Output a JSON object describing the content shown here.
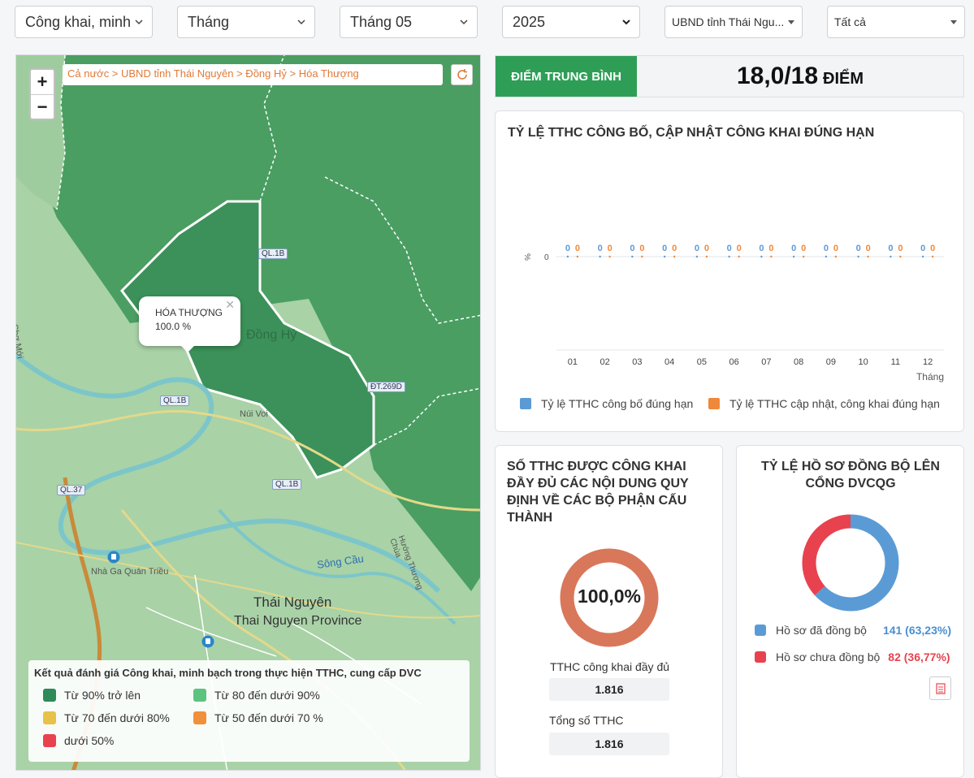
{
  "filters": {
    "type": "Công khai, minh",
    "period": "Tháng",
    "month": "Tháng 05",
    "year": "2025",
    "unit": "UBND tỉnh Thái Ngu...",
    "scope": "Tất cả"
  },
  "map": {
    "breadcrumb": "Cả nước > UBND tỉnh Thái Nguyên > Đồng Hỷ > Hóa Thượng",
    "popup": {
      "name": "HÓA THƯỢNG",
      "value": "100.0 %"
    },
    "labels": {
      "city": "Thái Nguyên",
      "province": "Thai Nguyen Province",
      "district": "Đồng Hỷ",
      "station": "Nhà Ga Quán Triều",
      "river": "Sông Cầu",
      "road_huong": "Hướng Thượng Chùa",
      "nui_voi": "Núi Voi",
      "tho_moi": "Chợ Mới"
    },
    "roads": [
      "QL.1B",
      "QL.1B",
      "QL.1B",
      "QL.37",
      "ĐT.269D"
    ],
    "legend": {
      "title": "Kết quả đánh giá Công khai, minh bạch trong thực hiện TTHC, cung cấp DVC",
      "items": [
        {
          "label": "Từ 90% trở lên",
          "color": "#2e8b57"
        },
        {
          "label": "Từ 80 đến dưới 90%",
          "color": "#5cc47f"
        },
        {
          "label": "Từ 70 đến dưới 80%",
          "color": "#e8c14a"
        },
        {
          "label": "Từ 50 đến dưới 70 %",
          "color": "#f0903a"
        },
        {
          "label": "dưới 50%",
          "color": "#e8424e"
        }
      ]
    }
  },
  "average": {
    "label": "ĐIỂM TRUNG BÌNH",
    "value": "18,0/18",
    "unit": "ĐIỂM"
  },
  "chart_data": [
    {
      "type": "line",
      "title": "TỶ LỆ TTHC CÔNG BỐ, CẬP NHẬT CÔNG KHAI ĐÚNG HẠN",
      "xlabel": "Tháng",
      "ylabel": "%",
      "categories": [
        "01",
        "02",
        "03",
        "04",
        "05",
        "06",
        "07",
        "08",
        "09",
        "10",
        "11",
        "12"
      ],
      "y_ticks": [
        "0"
      ],
      "series": [
        {
          "name": "Tỷ lệ TTHC công bố đúng hạn",
          "color": "#5b9bd5",
          "values": [
            0,
            0,
            0,
            0,
            0,
            0,
            0,
            0,
            0,
            0,
            0,
            0
          ]
        },
        {
          "name": "Tỷ lệ TTHC cập nhật, công khai đúng hạn",
          "color": "#f0883a",
          "values": [
            0,
            0,
            0,
            0,
            0,
            0,
            0,
            0,
            0,
            0,
            0,
            0
          ]
        }
      ],
      "legend": "bottom"
    },
    {
      "type": "pie",
      "title": "SỐ TTHC ĐƯỢC CÔNG KHAI ĐẦY ĐỦ CÁC NỘI DUNG QUY ĐỊNH VỀ CÁC BỘ PHẬN CẤU THÀNH",
      "center_label": "100,0%",
      "values": [
        100
      ],
      "colors": [
        "#d9775a"
      ]
    },
    {
      "type": "pie",
      "title": "TỶ LỆ HỒ SƠ ĐỒNG BỘ LÊN CỔNG DVCQG",
      "categories": [
        "Hồ sơ đã đồng bộ",
        "Hồ sơ chưa đồng bộ"
      ],
      "values": [
        141,
        82
      ],
      "percents": [
        "63,23%",
        "36,77%"
      ],
      "colors": [
        "#5b9bd5",
        "#e8424e"
      ]
    }
  ],
  "cards": {
    "line_title": "TỶ LỆ TTHC CÔNG BỐ, CẬP NHẬT CÔNG KHAI ĐÚNG HẠN",
    "full_title": "SỐ TTHC ĐƯỢC CÔNG KHAI ĐẦY ĐỦ CÁC NỘI DUNG QUY ĐỊNH VỀ CÁC BỘ PHẬN CẤU THÀNH",
    "full_center": "100,0%",
    "full_label": "TTHC công khai đầy đủ",
    "full_value": "1.816",
    "total_label": "Tổng số TTHC",
    "total_value": "1.816",
    "sync_title": "TỶ LỆ HỒ SƠ ĐỒNG BỘ LÊN CỔNG DVCQG",
    "synced_label": "Hồ sơ đã đồng bộ",
    "synced_value": "141 (63,23%)",
    "unsynced_label": "Hồ sơ chưa đồng bộ",
    "unsynced_value": "82 (36,77%)"
  }
}
